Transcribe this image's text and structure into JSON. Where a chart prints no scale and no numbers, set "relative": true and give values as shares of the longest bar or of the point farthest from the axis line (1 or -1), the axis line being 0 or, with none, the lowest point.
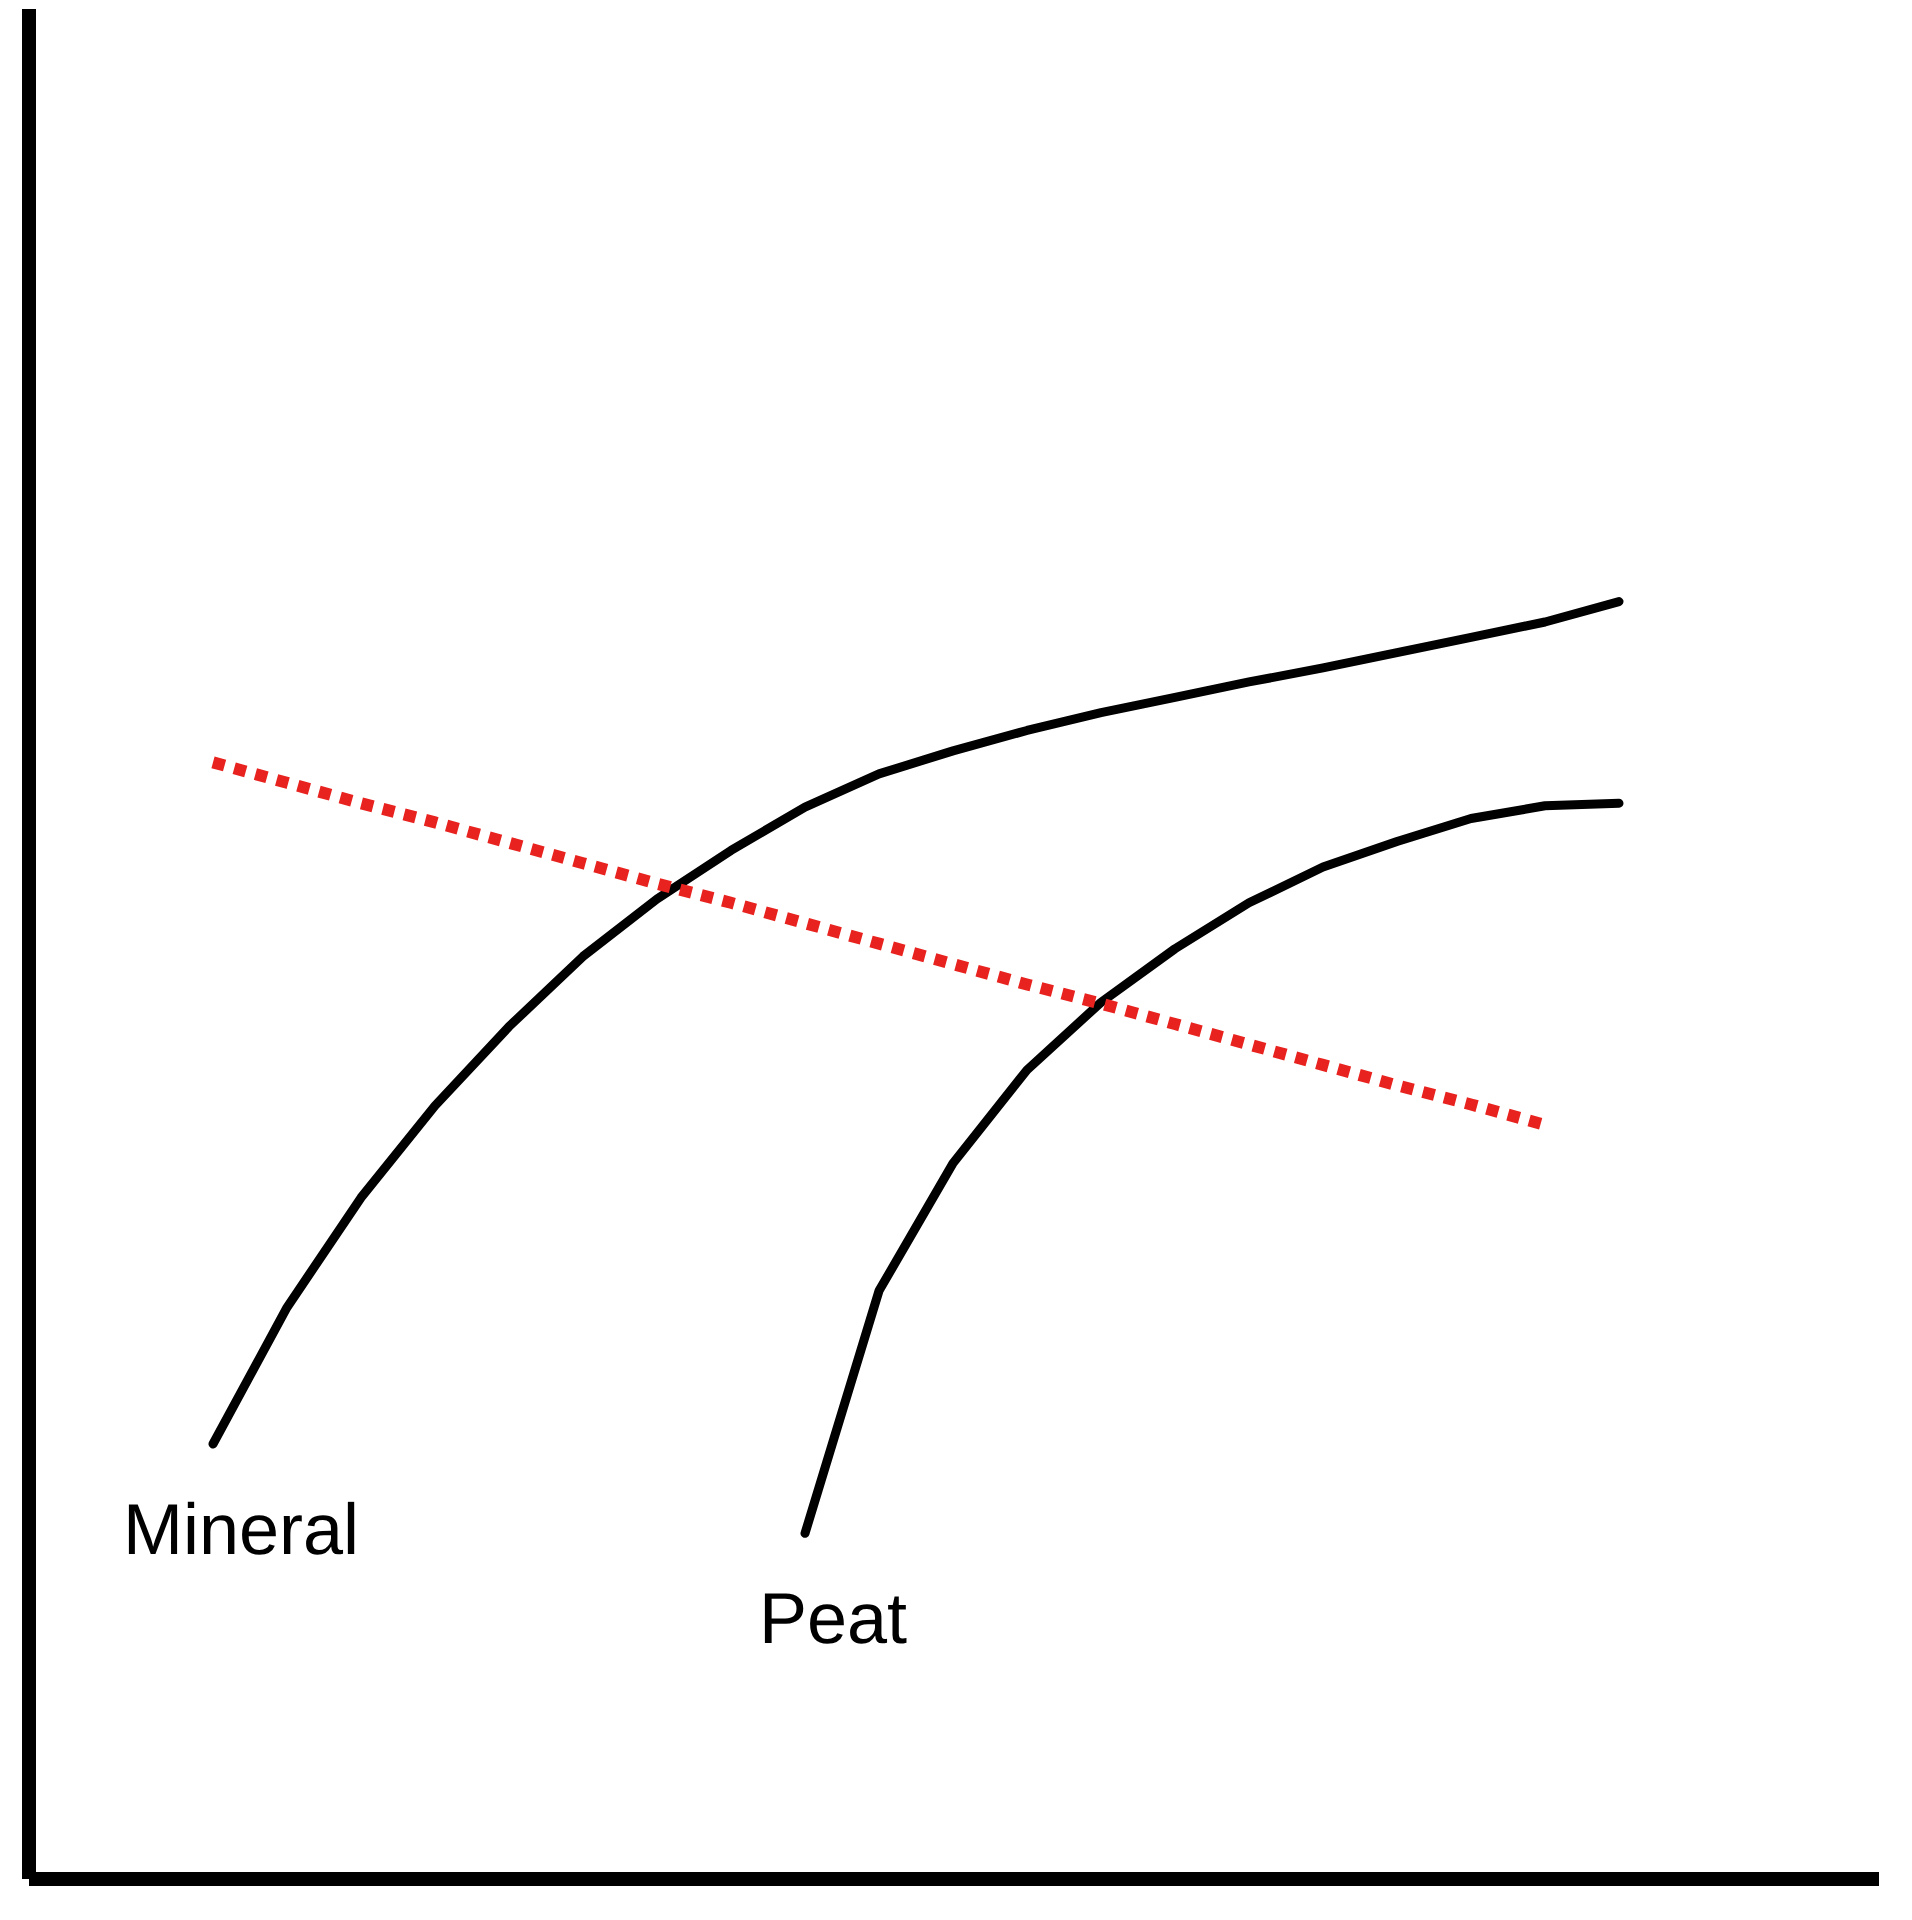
{
  "chart_data": {
    "type": "line",
    "relative": true,
    "categories": [
      null,
      null,
      null,
      null,
      null,
      null,
      null,
      null,
      null,
      null,
      null,
      null,
      null,
      null,
      null,
      null,
      null,
      null,
      null,
      null
    ],
    "series": [
      {
        "name": "Mineral",
        "color": "#000000",
        "line_style": "solid",
        "values": [
          0.34,
          0.447,
          0.533,
          0.605,
          0.667,
          0.722,
          0.767,
          0.805,
          0.839,
          0.865,
          0.883,
          0.899,
          0.913,
          0.925,
          0.937,
          0.948,
          0.96,
          0.972,
          0.984,
          1
        ]
      },
      {
        "name": "Peat",
        "color": "#000000",
        "line_style": "solid",
        "values": [
          null,
          null,
          null,
          null,
          null,
          null,
          null,
          null,
          0.27,
          0.46,
          0.56,
          0.633,
          0.686,
          0.728,
          0.764,
          0.792,
          0.812,
          0.83,
          0.84,
          0.842
        ]
      },
      {
        "color": "#e8231f",
        "line_style": "dotted",
        "values": [
          0.874,
          0.858,
          0.842,
          0.827,
          0.811,
          0.795,
          0.779,
          0.764,
          0.748,
          0.732,
          0.716,
          0.7,
          0.685,
          0.669,
          0.653,
          0.637,
          0.621,
          0.606,
          0.59,
          null
        ]
      }
    ]
  }
}
